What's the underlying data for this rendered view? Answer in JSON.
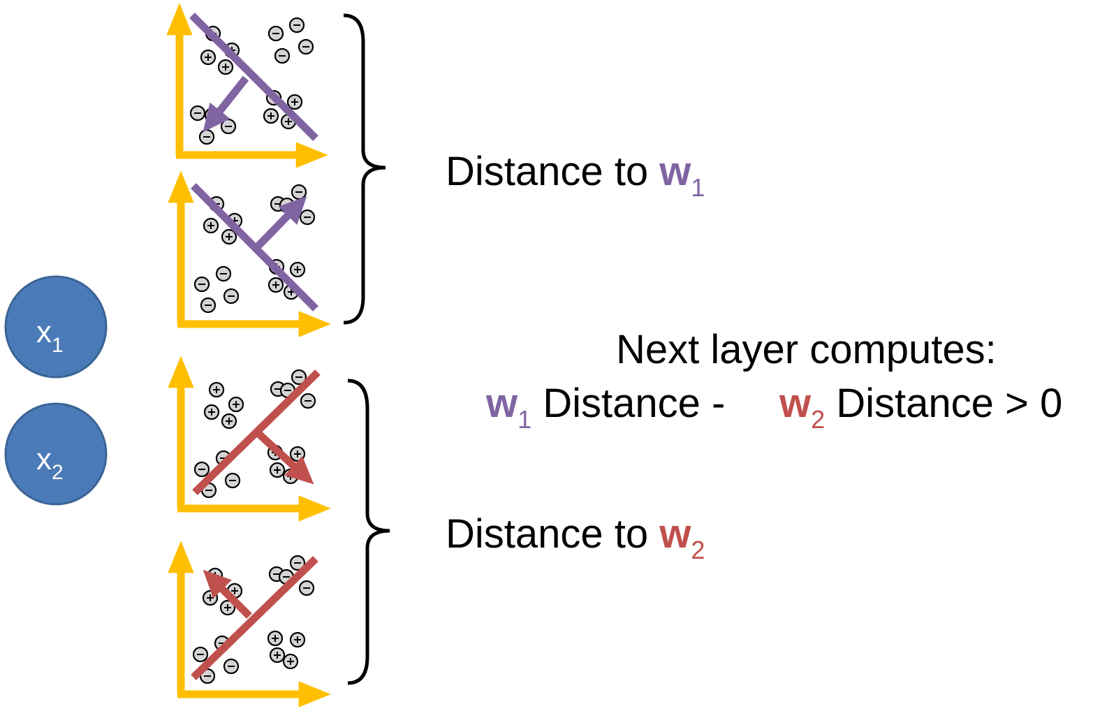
{
  "colors": {
    "node_fill": "#4b7ab8",
    "node_stroke": "#3b6395",
    "axis": "#ffbf00",
    "w1": "#8064a2",
    "w2": "#c0504d",
    "point_fill": "#d4d4d4",
    "brace": "#000000"
  },
  "nodes": [
    {
      "letter": "x",
      "sub": "1"
    },
    {
      "letter": "x",
      "sub": "2"
    }
  ],
  "labels": {
    "distance_w1": {
      "text": "Distance to ",
      "w": "w",
      "sub": "1"
    },
    "distance_w2": {
      "text": "Distance to ",
      "w": "w",
      "sub": "2"
    },
    "next_layer": "Next layer computes:",
    "formula": {
      "w1": "w",
      "w1_sub": "1",
      "mid": " Distance - ",
      "w2": "w",
      "w2_sub": "2",
      "end": " Distance > 0"
    }
  },
  "plots": [
    {
      "weight": "w1",
      "line": "negative-diagonal",
      "arrow": "down-left"
    },
    {
      "weight": "w1",
      "line": "negative-diagonal",
      "arrow": "up-right"
    },
    {
      "weight": "w2",
      "line": "positive-diagonal",
      "arrow": "down-right"
    },
    {
      "weight": "w2",
      "line": "positive-diagonal",
      "arrow": "up-left"
    }
  ],
  "point_symbols": {
    "plus": "+",
    "minus": "-"
  }
}
